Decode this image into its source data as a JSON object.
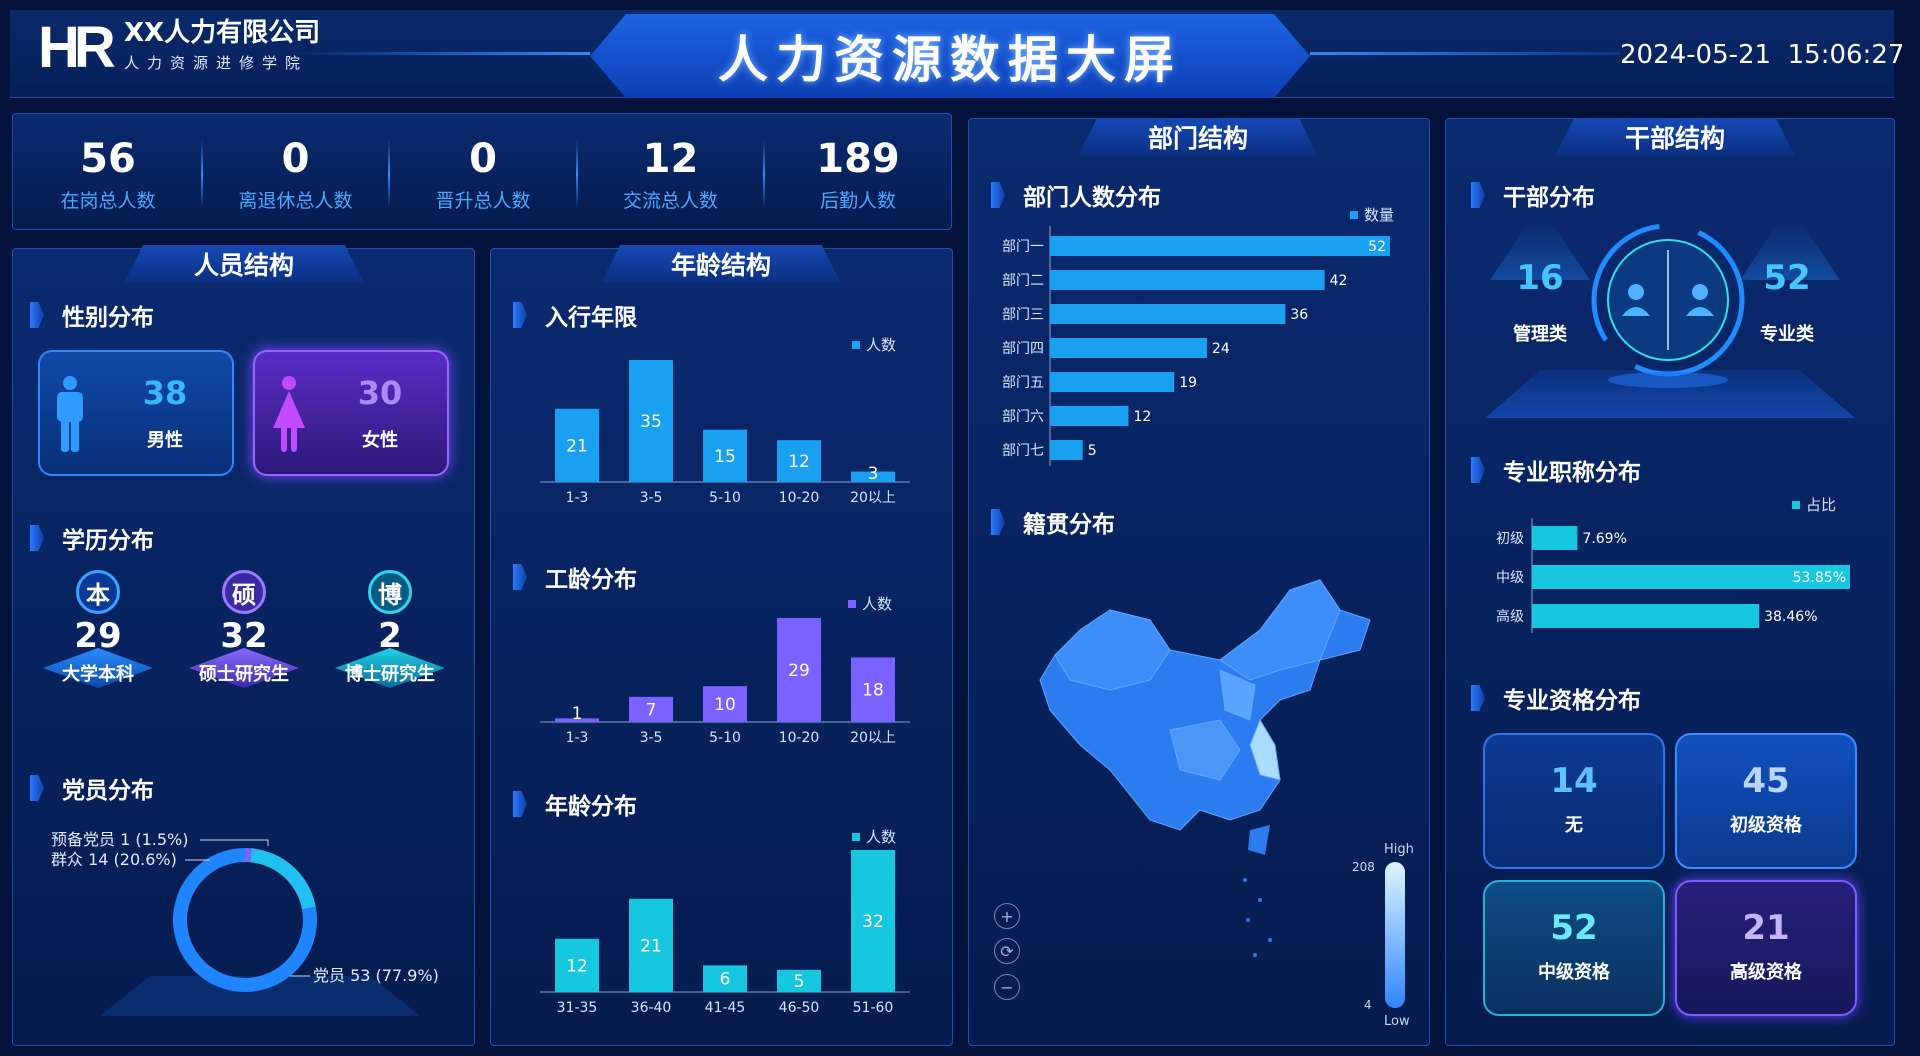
{
  "header": {
    "logo": "HR",
    "company": "XX人力有限公司",
    "subtitle": "人力资源进修学院",
    "title": "人力资源数据大屏",
    "datetime": "2024-05-21  15:06:27"
  },
  "stats": [
    {
      "value": "56",
      "label": "在岗总人数"
    },
    {
      "value": "0",
      "label": "离退休总人数"
    },
    {
      "value": "0",
      "label": "晋升总人数"
    },
    {
      "value": "12",
      "label": "交流总人数"
    },
    {
      "value": "189",
      "label": "后勤人数"
    }
  ],
  "personnel": {
    "title": "人员结构",
    "gender_title": "性别分布",
    "male": {
      "value": "38",
      "label": "男性"
    },
    "female": {
      "value": "30",
      "label": "女性"
    },
    "edu_title": "学历分布",
    "edu": [
      {
        "badge": "本",
        "value": "29",
        "label": "大学本科"
      },
      {
        "badge": "硕",
        "value": "32",
        "label": "硕士研究生"
      },
      {
        "badge": "博",
        "value": "2",
        "label": "博士研究生"
      }
    ],
    "party_title": "党员分布",
    "party_labels": [
      "预备党员 1 (1.5%)",
      "群众 14 (20.6%)",
      "党员 53 (77.9%)"
    ]
  },
  "age_panel": {
    "title": "年龄结构",
    "seniority_title": "入行年限",
    "work_title": "工龄分布",
    "age_title": "年龄分布"
  },
  "dept_panel": {
    "title": "部门结构",
    "dept_title": "部门人数分布",
    "origin_title": "籍贯分布",
    "map_high": "High",
    "map_low": "Low",
    "map_max": "208",
    "map_min": "4"
  },
  "cadre_panel": {
    "title": "干部结构",
    "cadre_title": "干部分布",
    "mgmt": {
      "value": "16",
      "label": "管理类"
    },
    "prof": {
      "value": "52",
      "label": "专业类"
    },
    "rank_title": "专业职称分布",
    "qual_title": "专业资格分布",
    "quals": [
      {
        "value": "14",
        "label": "无"
      },
      {
        "value": "45",
        "label": "初级资格"
      },
      {
        "value": "52",
        "label": "中级资格"
      },
      {
        "value": "21",
        "label": "高级资格"
      }
    ]
  },
  "colors": {
    "bar_blue": "#1aa0f0",
    "bar_purple": "#7b61ff",
    "bar_cyan": "#17c7e0"
  },
  "chart_data": [
    {
      "type": "bar",
      "title": "入行年限",
      "categories": [
        "1-3",
        "3-5",
        "5-10",
        "10-20",
        "20以上"
      ],
      "series": [
        {
          "name": "人数",
          "values": [
            21,
            35,
            15,
            12,
            3
          ]
        }
      ]
    },
    {
      "type": "bar",
      "title": "工龄分布",
      "categories": [
        "1-3",
        "3-5",
        "5-10",
        "10-20",
        "20以上"
      ],
      "series": [
        {
          "name": "人数",
          "values": [
            1,
            7,
            10,
            29,
            18
          ]
        }
      ]
    },
    {
      "type": "bar",
      "title": "年龄分布",
      "categories": [
        "31-35",
        "36-40",
        "41-45",
        "46-50",
        "51-60"
      ],
      "series": [
        {
          "name": "人数",
          "values": [
            12,
            21,
            6,
            5,
            32
          ]
        }
      ]
    },
    {
      "type": "bar",
      "title": "部门人数分布",
      "orientation": "horizontal",
      "categories": [
        "部门一",
        "部门二",
        "部门三",
        "部门四",
        "部门五",
        "部门六",
        "部门七"
      ],
      "series": [
        {
          "name": "数量",
          "values": [
            52,
            42,
            36,
            24,
            19,
            12,
            5
          ]
        }
      ]
    },
    {
      "type": "bar",
      "title": "专业职称分布",
      "orientation": "horizontal",
      "categories": [
        "初级",
        "中级",
        "高级"
      ],
      "series": [
        {
          "name": "占比",
          "values": [
            7.69,
            53.85,
            38.46
          ]
        }
      ],
      "value_labels": [
        "7.69%",
        "53.85%",
        "38.46%"
      ]
    },
    {
      "type": "pie",
      "title": "党员分布",
      "categories": [
        "预备党员",
        "群众",
        "党员"
      ],
      "values": [
        1,
        14,
        53
      ]
    }
  ]
}
